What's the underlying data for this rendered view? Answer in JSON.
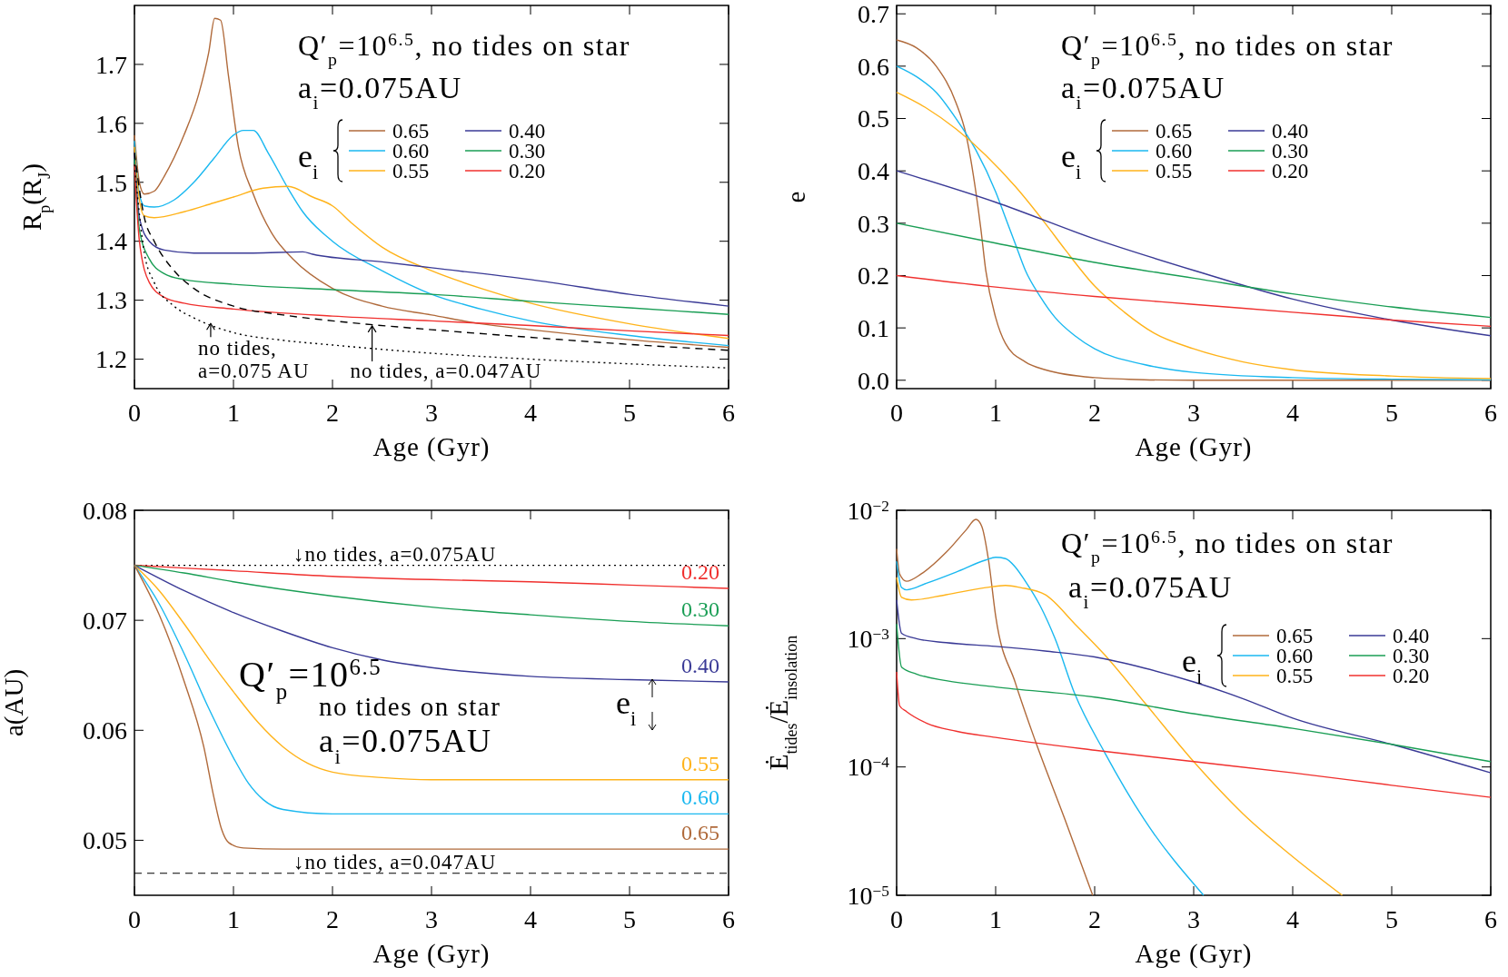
{
  "chart_data": [
    {
      "type": "line",
      "title": "Q′$_{p}$=10$^{6.5}$, no tides on star",
      "subtitle": "a$_{i}$=0.075AU",
      "xlabel": "Age (Gyr)",
      "ylabel": "R$_{p}$(R$_{J}$)",
      "legend_title": "e$_{i}$",
      "legend": "top right",
      "xlim": [
        0,
        6
      ],
      "ylim": [
        1.15,
        1.8
      ],
      "xticks": [
        0,
        1,
        2,
        3,
        4,
        5,
        6
      ],
      "yticks": [
        1.2,
        1.3,
        1.4,
        1.5,
        1.6,
        1.7
      ],
      "series": [
        {
          "name": "0.65",
          "color": "#b06a3b",
          "x": [
            0,
            0.05,
            0.1,
            0.2,
            0.3,
            0.5,
            0.65,
            0.75,
            0.81,
            0.87,
            0.95,
            1.05,
            1.2,
            1.4,
            1.6,
            2,
            2.5,
            3,
            3.5,
            4,
            5,
            6
          ],
          "values": [
            1.58,
            1.5,
            1.48,
            1.485,
            1.51,
            1.58,
            1.65,
            1.72,
            1.778,
            1.775,
            1.68,
            1.56,
            1.48,
            1.41,
            1.37,
            1.32,
            1.29,
            1.275,
            1.26,
            1.25,
            1.233,
            1.22
          ]
        },
        {
          "name": "0.60",
          "color": "#1ab8f0",
          "x": [
            0,
            0.05,
            0.1,
            0.2,
            0.4,
            0.6,
            0.8,
            1,
            1.1,
            1.2,
            1.35,
            1.55,
            1.7,
            2,
            2.5,
            3,
            3.5,
            4,
            5,
            6
          ],
          "values": [
            1.57,
            1.48,
            1.46,
            1.458,
            1.47,
            1.5,
            1.54,
            1.58,
            1.588,
            1.588,
            1.55,
            1.49,
            1.45,
            1.4,
            1.35,
            1.31,
            1.285,
            1.265,
            1.24,
            1.223
          ]
        },
        {
          "name": "0.55",
          "color": "#ffb31a",
          "x": [
            0,
            0.05,
            0.1,
            0.2,
            0.5,
            0.8,
            1,
            1.3,
            1.55,
            1.8,
            2,
            2.2,
            2.5,
            3,
            3.5,
            4,
            5,
            6
          ],
          "values": [
            1.56,
            1.47,
            1.443,
            1.44,
            1.45,
            1.465,
            1.475,
            1.49,
            1.493,
            1.475,
            1.46,
            1.43,
            1.39,
            1.35,
            1.32,
            1.295,
            1.26,
            1.235
          ]
        },
        {
          "name": "0.40",
          "color": "#3a3a96",
          "x": [
            0,
            0.05,
            0.15,
            0.3,
            0.6,
            1.2,
            1.7,
            1.8,
            2.5,
            3,
            4,
            5,
            6
          ],
          "values": [
            1.55,
            1.44,
            1.4,
            1.385,
            1.38,
            1.38,
            1.382,
            1.378,
            1.365,
            1.355,
            1.335,
            1.31,
            1.29
          ]
        },
        {
          "name": "0.30",
          "color": "#1a9e55",
          "x": [
            0,
            0.05,
            0.15,
            0.3,
            0.5,
            1,
            2,
            3,
            4,
            5,
            6
          ],
          "values": [
            1.54,
            1.42,
            1.37,
            1.345,
            1.335,
            1.327,
            1.318,
            1.31,
            1.298,
            1.287,
            1.276
          ]
        },
        {
          "name": "0.20",
          "color": "#f0302e",
          "x": [
            0,
            0.05,
            0.15,
            0.3,
            0.5,
            1,
            2,
            3,
            4,
            5,
            6
          ],
          "values": [
            1.53,
            1.4,
            1.33,
            1.305,
            1.295,
            1.285,
            1.273,
            1.265,
            1.257,
            1.248,
            1.24
          ]
        },
        {
          "color": "#000000",
          "line_style": "dashed",
          "x": [
            0,
            0.1,
            0.2,
            0.4,
            0.6,
            1,
            1.5,
            2,
            3,
            4,
            5,
            6
          ],
          "values": [
            1.55,
            1.44,
            1.4,
            1.35,
            1.32,
            1.29,
            1.275,
            1.265,
            1.25,
            1.237,
            1.225,
            1.215
          ]
        },
        {
          "color": "#000000",
          "line_style": "dotted",
          "x": [
            0,
            0.1,
            0.2,
            0.4,
            0.6,
            1,
            1.5,
            2,
            3,
            4,
            5,
            6
          ],
          "values": [
            1.53,
            1.38,
            1.33,
            1.29,
            1.27,
            1.245,
            1.232,
            1.224,
            1.21,
            1.2,
            1.192,
            1.185
          ]
        }
      ],
      "annotations": [
        {
          "text": "no tides,\na=0.075 AU",
          "x": 0.77,
          "y": 1.262
        },
        {
          "text": "no tides, a=0.047AU",
          "x": 2.4,
          "y": 1.258
        }
      ]
    },
    {
      "type": "line",
      "title": "Q′$_{p}$=10$^{6.5}$, no tides on star",
      "subtitle": "a$_{i}$=0.075AU",
      "xlabel": "Age (Gyr)",
      "ylabel": "e",
      "legend_title": "e$_{i}$",
      "legend": "top right",
      "xlim": [
        0,
        6
      ],
      "ylim": [
        -0.016,
        0.716
      ],
      "xticks": [
        0,
        1,
        2,
        3,
        4,
        5,
        6
      ],
      "yticks": [
        {
          "value": 0,
          "label": "0.0"
        },
        0.1,
        0.2,
        0.3,
        0.4,
        0.5,
        0.6,
        0.7
      ],
      "series": [
        {
          "name": "0.65",
          "color": "#b06a3b",
          "x": [
            0,
            0.2,
            0.4,
            0.6,
            0.7,
            0.8,
            0.85,
            0.9,
            1,
            1.1,
            1.3,
            1.5,
            2,
            2.5,
            3,
            6
          ],
          "values": [
            0.65,
            0.635,
            0.6,
            0.53,
            0.47,
            0.36,
            0.29,
            0.21,
            0.12,
            0.07,
            0.035,
            0.02,
            0.005,
            0.001,
            0,
            0
          ]
        },
        {
          "name": "0.60",
          "color": "#1ab8f0",
          "x": [
            0,
            0.2,
            0.4,
            0.6,
            0.8,
            1,
            1.1,
            1.2,
            1.3,
            1.45,
            1.6,
            1.8,
            2,
            2.5,
            3,
            4,
            5,
            6
          ],
          "values": [
            0.6,
            0.58,
            0.55,
            0.5,
            0.44,
            0.36,
            0.31,
            0.26,
            0.21,
            0.16,
            0.12,
            0.085,
            0.06,
            0.03,
            0.015,
            0.005,
            0.002,
            0.001
          ]
        },
        {
          "name": "0.55",
          "color": "#ffb31a",
          "x": [
            0,
            0.3,
            0.6,
            0.9,
            1.2,
            1.5,
            1.7,
            2,
            2.3,
            2.6,
            3,
            3.5,
            4,
            5,
            6
          ],
          "values": [
            0.55,
            0.52,
            0.48,
            0.43,
            0.37,
            0.3,
            0.25,
            0.18,
            0.13,
            0.09,
            0.06,
            0.035,
            0.02,
            0.008,
            0.003
          ]
        },
        {
          "name": "0.40",
          "color": "#3a3a96",
          "x": [
            0,
            1,
            2,
            3,
            4,
            5,
            6
          ],
          "values": [
            0.4,
            0.34,
            0.27,
            0.21,
            0.155,
            0.115,
            0.085
          ]
        },
        {
          "name": "0.30",
          "color": "#1a9e55",
          "x": [
            0,
            1,
            2,
            3,
            4,
            5,
            6
          ],
          "values": [
            0.3,
            0.262,
            0.225,
            0.195,
            0.165,
            0.14,
            0.12
          ]
        },
        {
          "name": "0.20",
          "color": "#f0302e",
          "x": [
            0,
            1,
            2,
            3,
            4,
            5,
            6
          ],
          "values": [
            0.2,
            0.178,
            0.16,
            0.145,
            0.13,
            0.115,
            0.103
          ]
        }
      ]
    },
    {
      "type": "line",
      "title": "Q′$_{p}$=10$^{6.5}$",
      "subtitle": "no tides on star",
      "annotations": [
        "a$_{i}$=0.075AU"
      ],
      "xlabel": "Age (Gyr)",
      "ylabel": "a(AU)",
      "legend_title": "e$_{i}$",
      "legend": "right",
      "xlim": [
        0,
        6
      ],
      "ylim": [
        0.045,
        0.08
      ],
      "xticks": [
        0,
        1,
        2,
        3,
        4,
        5,
        6
      ],
      "yticks": [
        0.05,
        0.06,
        0.07,
        0.08
      ],
      "ref_lines": [
        {
          "axis": "y",
          "value": 0.075,
          "label": "↓no tides, a=0.075AU",
          "line_style": "dotted",
          "color": "#000000"
        },
        {
          "axis": "y",
          "value": 0.047,
          "label": "↓no tides, a=0.047AU",
          "line_style": "dashed",
          "color": "#000000"
        }
      ],
      "series": [
        {
          "name": "0.20",
          "color": "#f0302e",
          "x": [
            0,
            1,
            2,
            3,
            4,
            5,
            6
          ],
          "values": [
            0.075,
            0.0745,
            0.074,
            0.0737,
            0.0735,
            0.0732,
            0.0729
          ]
        },
        {
          "name": "0.30",
          "color": "#1a9e55",
          "x": [
            0,
            0.5,
            1,
            2,
            3,
            4,
            5,
            6
          ],
          "values": [
            0.075,
            0.0743,
            0.0735,
            0.0722,
            0.0712,
            0.0705,
            0.0699,
            0.0695
          ]
        },
        {
          "name": "0.40",
          "color": "#3a3a96",
          "x": [
            0,
            0.5,
            1,
            1.5,
            2,
            2.5,
            3,
            4,
            5,
            6
          ],
          "values": [
            0.075,
            0.0727,
            0.0707,
            0.069,
            0.0675,
            0.0664,
            0.0657,
            0.0649,
            0.0646,
            0.0644
          ]
        },
        {
          "name": "0.55",
          "color": "#ffb31a",
          "x": [
            0,
            0.25,
            0.5,
            0.75,
            1,
            1.25,
            1.5,
            1.75,
            2,
            2.5,
            3,
            6
          ],
          "values": [
            0.075,
            0.0727,
            0.0697,
            0.0665,
            0.0635,
            0.0607,
            0.0585,
            0.057,
            0.0562,
            0.0557,
            0.0555,
            0.0555
          ]
        },
        {
          "name": "0.60",
          "color": "#1ab8f0",
          "x": [
            0,
            0.25,
            0.5,
            0.75,
            1,
            1.15,
            1.3,
            1.5,
            2,
            6
          ],
          "values": [
            0.075,
            0.0715,
            0.067,
            0.062,
            0.0575,
            0.0552,
            0.0537,
            0.0528,
            0.0524,
            0.0524
          ]
        },
        {
          "name": "0.65",
          "color": "#b06a3b",
          "x": [
            0,
            0.25,
            0.5,
            0.7,
            0.8,
            0.88,
            0.95,
            1.1,
            1.5,
            6
          ],
          "values": [
            0.075,
            0.0705,
            0.0645,
            0.0585,
            0.054,
            0.051,
            0.0498,
            0.0493,
            0.0492,
            0.0492
          ]
        }
      ]
    },
    {
      "type": "line",
      "log": true,
      "title": "Q′$_{p}$=10$^{6.5}$, no tides on star",
      "subtitle": "a$_{i}$=0.075AU",
      "xlabel": "Age (Gyr)",
      "ylabel": "Ė$_{tides}$/Ė$_{insolation}$",
      "legend_title": "e$_{i}$",
      "legend": "top right",
      "xlim": [
        0,
        6
      ],
      "ylim": [
        1e-05,
        0.01
      ],
      "xticks": [
        0,
        1,
        2,
        3,
        4,
        5,
        6
      ],
      "yticks": [
        {
          "value": 1e-05,
          "label": "10$^{−5}$"
        },
        {
          "value": 0.0001,
          "label": "10$^{−4}$"
        },
        {
          "value": 0.001,
          "label": "10$^{−3}$"
        },
        {
          "value": 0.01,
          "label": "10$^{−2}$"
        }
      ],
      "series": [
        {
          "name": "0.65",
          "color": "#b06a3b",
          "x": [
            0,
            0.03,
            0.1,
            0.25,
            0.5,
            0.7,
            0.8,
            0.86,
            0.93,
            1,
            1.2,
            1.4,
            1.7,
            1.98
          ],
          "values": [
            0.005,
            0.0032,
            0.0028,
            0.0032,
            0.0047,
            0.007,
            0.0085,
            0.0075,
            0.004,
            0.0015,
            0.00045,
            0.00016,
            3.9e-05,
            1e-05
          ]
        },
        {
          "name": "0.60",
          "color": "#1ab8f0",
          "x": [
            0,
            0.05,
            0.1,
            0.3,
            0.6,
            0.9,
            1,
            1.1,
            1.2,
            1.3,
            1.45,
            1.6,
            1.8,
            2.1,
            2.5,
            3.1
          ],
          "values": [
            0.004,
            0.0025,
            0.0024,
            0.0027,
            0.0033,
            0.0041,
            0.0043,
            0.0042,
            0.0036,
            0.0028,
            0.0018,
            0.001,
            0.00037,
            0.00013,
            3.9e-05,
            1e-05
          ]
        },
        {
          "name": "0.55",
          "color": "#ffb31a",
          "x": [
            0,
            0.05,
            0.15,
            0.5,
            0.9,
            1.1,
            1.25,
            1.5,
            1.8,
            2.1,
            2.5,
            3,
            3.5,
            4,
            4.5
          ],
          "values": [
            0.003,
            0.0021,
            0.002,
            0.0022,
            0.0025,
            0.0026,
            0.0025,
            0.0022,
            0.0013,
            0.00075,
            0.00032,
            0.00011,
            4.3e-05,
            2e-05,
            1e-05
          ]
        },
        {
          "name": "0.40",
          "color": "#3a3a96",
          "x": [
            0,
            0.05,
            0.2,
            0.5,
            1,
            1.5,
            2,
            2.5,
            3,
            3.5,
            4,
            5,
            6
          ],
          "values": [
            0.002,
            0.0011,
            0.001,
            0.00093,
            0.00087,
            0.0008,
            0.00072,
            0.00059,
            0.00046,
            0.00034,
            0.00024,
            0.00015,
            9e-05
          ]
        },
        {
          "name": "0.30",
          "color": "#1a9e55",
          "x": [
            0,
            0.05,
            0.2,
            0.5,
            1,
            2,
            3,
            4,
            5,
            6
          ],
          "values": [
            0.0013,
            0.0006,
            0.00053,
            0.00047,
            0.00042,
            0.00035,
            0.00026,
            0.0002,
            0.00015,
            0.00011
          ]
        },
        {
          "name": "0.20",
          "color": "#f0302e",
          "x": [
            0,
            0.03,
            0.1,
            0.3,
            0.6,
            1,
            2,
            3,
            4,
            5,
            6
          ],
          "values": [
            0.00055,
            0.0003,
            0.00027,
            0.00022,
            0.00019,
            0.00017,
            0.000135,
            0.00011,
            9e-05,
            7.2e-05,
            5.8e-05
          ]
        }
      ]
    }
  ]
}
